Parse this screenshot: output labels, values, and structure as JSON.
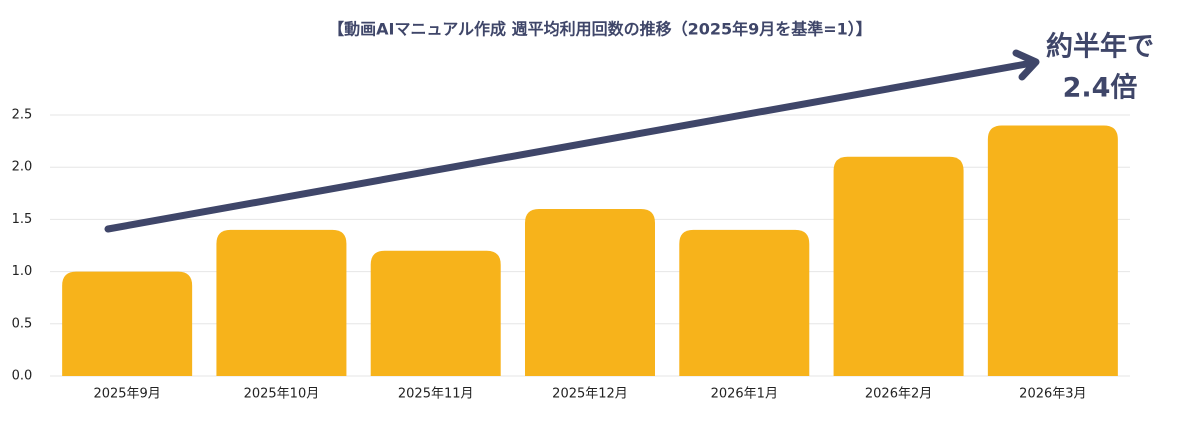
{
  "chart_data": {
    "type": "bar",
    "title": "【動画AIマニュアル作成 週平均利用回数の推移（2025年9月を基準=1）】",
    "annotation": [
      "約半年で",
      "2.4倍"
    ],
    "categories": [
      "2025年9月",
      "2025年10月",
      "2025年11月",
      "2025年12月",
      "2026年1月",
      "2026年2月",
      "2026年3月"
    ],
    "values": [
      1.0,
      1.4,
      1.2,
      1.6,
      1.4,
      2.1,
      2.4
    ],
    "color": "#f7b31b",
    "ylim": [
      0,
      2.5
    ],
    "yticks": [
      {
        "value": 0,
        "label": "0.0"
      },
      0.5,
      {
        "value": 1,
        "label": "1.0"
      },
      1.5,
      {
        "value": 2,
        "label": "2.0"
      },
      2.5
    ],
    "grid": true
  }
}
